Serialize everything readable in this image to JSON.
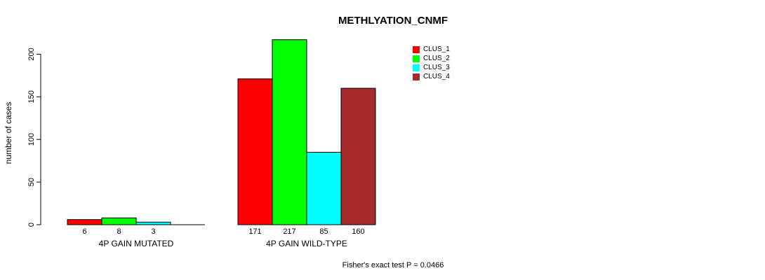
{
  "chart_data": {
    "type": "bar",
    "title": "METHLYATION_CNMF",
    "xlabel": "",
    "ylabel": "number of cases",
    "ylim": [
      0,
      220
    ],
    "yticks": [
      0,
      50,
      100,
      150,
      200
    ],
    "grid": false,
    "legend_position": "top-right",
    "bar_border_color": "#000000",
    "background_color": "#ffffff",
    "groups": [
      "4P GAIN MUTATED",
      "4P GAIN WILD-TYPE"
    ],
    "series": [
      {
        "name": "CLUS_1",
        "color": "#ff0000",
        "values": [
          6,
          171
        ]
      },
      {
        "name": "CLUS_2",
        "color": "#00ff00",
        "values": [
          8,
          217
        ]
      },
      {
        "name": "CLUS_3",
        "color": "#00ffff",
        "values": [
          3,
          85
        ]
      },
      {
        "name": "CLUS_4",
        "color": "#a52a2a",
        "values": [
          0,
          160
        ]
      }
    ],
    "bar_value_labels": [
      [
        "6",
        "8",
        "3",
        ""
      ],
      [
        "171",
        "217",
        "85",
        "160"
      ]
    ],
    "annotation": "Fisher's exact test P = 0.0466"
  }
}
